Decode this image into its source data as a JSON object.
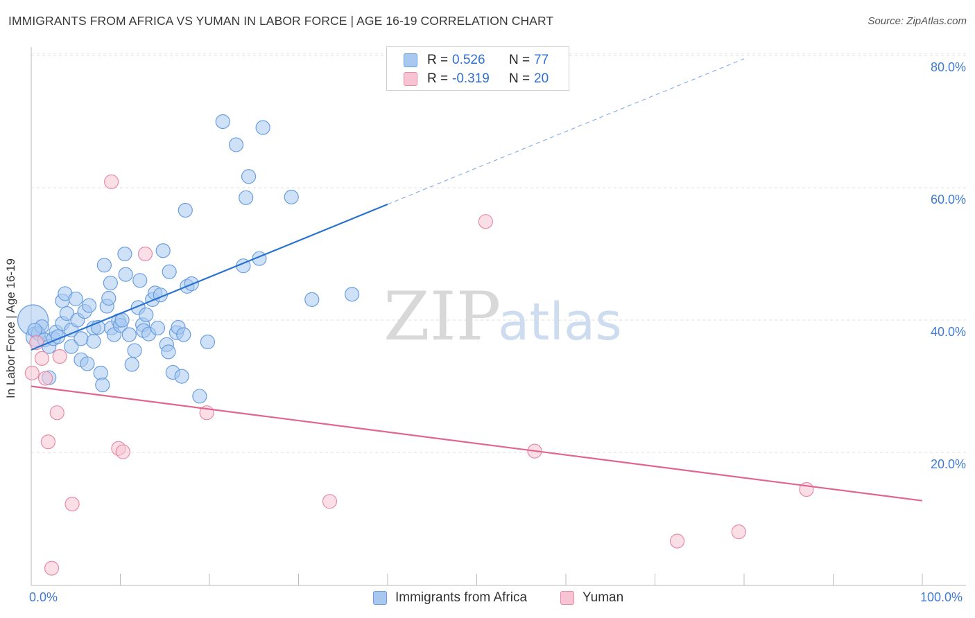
{
  "title": "IMMIGRANTS FROM AFRICA VS YUMAN IN LABOR FORCE | AGE 16-19 CORRELATION CHART",
  "source": "Source: ZipAtlas.com",
  "watermark": {
    "zip": "ZIP",
    "atlas": "atlas"
  },
  "legend": [
    {
      "r_label": "R =",
      "r_value": "0.526",
      "n_label": "N =",
      "n_value": "77",
      "color": "#a8c8f0",
      "border": "#6a9ee0"
    },
    {
      "r_label": "R =",
      "r_value": "-0.319",
      "n_label": "N =",
      "n_value": "20",
      "color": "#f8c4d4",
      "border": "#e88aa8"
    }
  ],
  "bottom_legend": [
    "Immigrants from Africa",
    "Yuman"
  ],
  "x_tick_labels": [
    "0.0%",
    "100.0%"
  ],
  "y_tick_labels": [
    "80.0%",
    "60.0%",
    "40.0%",
    "20.0%"
  ],
  "chart_data": {
    "type": "scatter",
    "title": "IMMIGRANTS FROM AFRICA VS YUMAN IN LABOR FORCE | AGE 16-19 CORRELATION CHART",
    "xlabel": "",
    "ylabel": "In Labor Force | Age 16-19",
    "xlim": [
      0,
      100
    ],
    "ylim": [
      0,
      85
    ],
    "y_ticks": [
      20,
      40,
      60,
      80
    ],
    "grid": "horizontal dashed",
    "legend_position": "top-center",
    "colors": {
      "africa": "#4a86d8",
      "africa_fill": "#a8c8f0",
      "yuman": "#e0658f",
      "yuman_fill": "#f8c4d4"
    },
    "series": [
      {
        "name": "Immigrants from Africa",
        "r": 0.526,
        "n": 77,
        "trend": {
          "x0": 0,
          "y0": 35.5,
          "x1": 40,
          "y1": 57.5,
          "dashed_to_x": 80,
          "dashed_to_y": 79.5
        },
        "points": [
          [
            0.2,
            40,
            22
          ],
          [
            0.5,
            37.5,
            14
          ],
          [
            0.8,
            38,
            10
          ],
          [
            1.2,
            39,
            10
          ],
          [
            1.5,
            37,
            10
          ],
          [
            2.0,
            36,
            10
          ],
          [
            2.0,
            31.3,
            10
          ],
          [
            2.5,
            37.2,
            10
          ],
          [
            2.8,
            38.2,
            10
          ],
          [
            3.0,
            37.5,
            10
          ],
          [
            3.5,
            39.5,
            10
          ],
          [
            3.5,
            42.9,
            10
          ],
          [
            3.8,
            44.0,
            10
          ],
          [
            4.0,
            41,
            10
          ],
          [
            4.5,
            38.5,
            10
          ],
          [
            4.5,
            36,
            10
          ],
          [
            5.0,
            43.2,
            10
          ],
          [
            5.2,
            40,
            10
          ],
          [
            5.6,
            37.2,
            10
          ],
          [
            5.6,
            34,
            10
          ],
          [
            6.0,
            41.3,
            10
          ],
          [
            6.3,
            33.4,
            10
          ],
          [
            6.5,
            42.2,
            10
          ],
          [
            7.0,
            36.8,
            10
          ],
          [
            7.0,
            38.8,
            10
          ],
          [
            7.5,
            38.9,
            10
          ],
          [
            7.8,
            32,
            10
          ],
          [
            8.0,
            30.2,
            10
          ],
          [
            8.2,
            48.3,
            10
          ],
          [
            8.5,
            42.1,
            10
          ],
          [
            8.7,
            43.3,
            10
          ],
          [
            8.9,
            45.6,
            10
          ],
          [
            9.0,
            38.8,
            10
          ],
          [
            9.3,
            37.8,
            10
          ],
          [
            9.8,
            39.9,
            10
          ],
          [
            10.0,
            39.2,
            10
          ],
          [
            10.2,
            40,
            10
          ],
          [
            10.5,
            50,
            10
          ],
          [
            10.6,
            46.9,
            10
          ],
          [
            11.0,
            37.8,
            10
          ],
          [
            11.3,
            33.3,
            10
          ],
          [
            11.6,
            35.4,
            10
          ],
          [
            12.0,
            41.9,
            10
          ],
          [
            12.2,
            46,
            10
          ],
          [
            12.5,
            39.3,
            10
          ],
          [
            12.6,
            38.4,
            10
          ],
          [
            12.9,
            40.8,
            10
          ],
          [
            13.2,
            37.9,
            10
          ],
          [
            13.6,
            43.1,
            10
          ],
          [
            13.9,
            44.1,
            10
          ],
          [
            14.2,
            38.8,
            10
          ],
          [
            14.5,
            43.8,
            10
          ],
          [
            14.8,
            50.5,
            10
          ],
          [
            15.2,
            36.3,
            10
          ],
          [
            15.4,
            35.2,
            10
          ],
          [
            15.5,
            47.3,
            10
          ],
          [
            15.9,
            32.1,
            10
          ],
          [
            16.3,
            38.1,
            10
          ],
          [
            16.5,
            38.9,
            10
          ],
          [
            16.9,
            31.5,
            10
          ],
          [
            17.1,
            37.8,
            10
          ],
          [
            17.3,
            56.6,
            10
          ],
          [
            17.5,
            45.1,
            10
          ],
          [
            18.0,
            45.5,
            10
          ],
          [
            18.9,
            28.5,
            10
          ],
          [
            19.8,
            36.7,
            10
          ],
          [
            21.5,
            70,
            10
          ],
          [
            23.0,
            66.5,
            10
          ],
          [
            23.8,
            48.2,
            10
          ],
          [
            24.1,
            58.5,
            10
          ],
          [
            24.4,
            61.7,
            10
          ],
          [
            25.6,
            49.3,
            10
          ],
          [
            26.0,
            69.1,
            10
          ],
          [
            29.2,
            58.6,
            10
          ],
          [
            31.5,
            43.1,
            10
          ],
          [
            36.0,
            43.9,
            10
          ],
          [
            0.4,
            38.5,
            10
          ]
        ]
      },
      {
        "name": "Yuman",
        "r": -0.319,
        "n": 20,
        "trend": {
          "x0": 0,
          "y0": 30.0,
          "x1": 100,
          "y1": 12.7
        },
        "points": [
          [
            0.1,
            32,
            10
          ],
          [
            0.6,
            36.6,
            10
          ],
          [
            1.2,
            34.2,
            10
          ],
          [
            1.6,
            31.2,
            10
          ],
          [
            1.9,
            21.6,
            10
          ],
          [
            2.3,
            2.5,
            10
          ],
          [
            2.9,
            26.0,
            10
          ],
          [
            3.2,
            34.5,
            10
          ],
          [
            4.6,
            12.2,
            10
          ],
          [
            9.0,
            60.9,
            10
          ],
          [
            9.8,
            20.6,
            10
          ],
          [
            10.3,
            20.1,
            10
          ],
          [
            12.8,
            50,
            10
          ],
          [
            19.7,
            26,
            10
          ],
          [
            33.5,
            12.6,
            10
          ],
          [
            51.0,
            54.9,
            10
          ],
          [
            56.5,
            20.2,
            10
          ],
          [
            72.5,
            6.6,
            10
          ],
          [
            79.4,
            8.0,
            10
          ],
          [
            87.0,
            14.4,
            10
          ]
        ]
      }
    ]
  }
}
